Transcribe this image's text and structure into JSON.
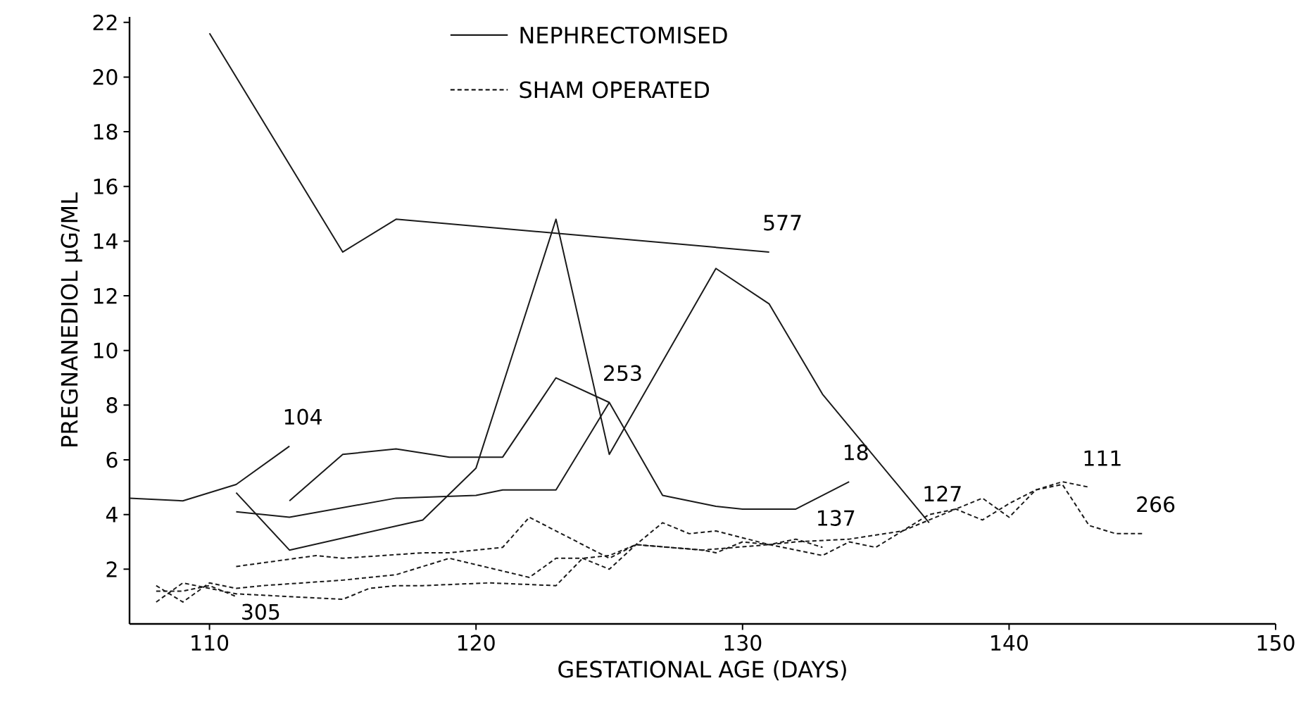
{
  "chart_data": {
    "type": "line",
    "xlabel": "GESTATIONAL AGE (DAYS)",
    "ylabel": "PREGNANEDIOL µG/ML",
    "annotations": [
      "NEPHRECTOMISED",
      "SHAM OPERATED"
    ],
    "xlim": [
      107,
      150
    ],
    "ylim": [
      0,
      22.2
    ],
    "xticks": [
      110,
      120,
      130,
      140,
      150
    ],
    "yticks": [
      2,
      4,
      6,
      8,
      10,
      12,
      14,
      16,
      18,
      20,
      22
    ],
    "grid": false,
    "marker": "none",
    "series": [
      {
        "name": "577",
        "color": "#1a1a1a",
        "line_style": "solid",
        "x": [
          110,
          115,
          117,
          131
        ],
        "values": [
          21.6,
          13.6,
          14.8,
          13.6
        ]
      },
      {
        "name": "104",
        "color": "#1a1a1a",
        "line_style": "solid",
        "x": [
          107,
          109,
          111,
          113
        ],
        "values": [
          4.6,
          4.5,
          5.1,
          6.5
        ]
      },
      {
        "name": "253",
        "color": "#1a1a1a",
        "line_style": "solid",
        "x": [
          113,
          115,
          117,
          119,
          121,
          123,
          125
        ],
        "values": [
          4.5,
          6.2,
          6.4,
          6.1,
          6.1,
          9.0,
          8.1
        ]
      },
      {
        "name": "18",
        "color": "#1a1a1a",
        "line_style": "solid",
        "x": [
          111,
          113,
          117,
          120,
          121,
          123,
          125,
          127,
          129,
          130,
          132,
          134
        ],
        "values": [
          4.1,
          3.9,
          4.6,
          4.7,
          4.9,
          4.9,
          8.1,
          4.7,
          4.3,
          4.2,
          4.2,
          5.2
        ]
      },
      {
        "name": "127",
        "color": "#1a1a1a",
        "line_style": "solid",
        "x": [
          111,
          113,
          118,
          120,
          123,
          125,
          129,
          131,
          133,
          137
        ],
        "values": [
          4.8,
          2.7,
          3.8,
          5.7,
          14.8,
          6.2,
          13.0,
          11.7,
          8.4,
          3.7
        ]
      },
      {
        "name": "137",
        "color": "#1a1a1a",
        "line_style": "dashed",
        "x": [
          111,
          114,
          115,
          118,
          119,
          121,
          122,
          125,
          126,
          128.5,
          129,
          130,
          131,
          132,
          133
        ],
        "values": [
          2.1,
          2.5,
          2.4,
          2.6,
          2.6,
          2.8,
          3.9,
          2.4,
          2.9,
          2.7,
          2.6,
          3.0,
          2.9,
          3.1,
          2.8
        ]
      },
      {
        "name": "111",
        "color": "#1a1a1a",
        "line_style": "dashed",
        "x": [
          108,
          109,
          110,
          111,
          112,
          115,
          117,
          119,
          122,
          123,
          124,
          125,
          126,
          127,
          128,
          129,
          131,
          133,
          134,
          135,
          137,
          138,
          139,
          140,
          141,
          142,
          143
        ],
        "values": [
          1.4,
          0.8,
          1.5,
          1.3,
          1.4,
          1.6,
          1.8,
          2.4,
          1.7,
          2.4,
          2.4,
          2.0,
          2.9,
          3.7,
          3.3,
          3.4,
          2.9,
          2.5,
          3.0,
          2.8,
          4.0,
          4.2,
          4.6,
          3.9,
          4.9,
          5.2,
          5.0
        ]
      },
      {
        "name": "266",
        "color": "#1a1a1a",
        "line_style": "dashed",
        "x": [
          108,
          109,
          110,
          111,
          115,
          116,
          117,
          118,
          120.5,
          123,
          124,
          125,
          126,
          128.5,
          131,
          132,
          134,
          136,
          137,
          138,
          139,
          140,
          141,
          142,
          143,
          144,
          145
        ],
        "values": [
          0.8,
          1.5,
          1.3,
          1.1,
          0.9,
          1.3,
          1.4,
          1.4,
          1.5,
          1.4,
          2.4,
          2.5,
          2.9,
          2.7,
          2.9,
          3.0,
          3.1,
          3.4,
          3.8,
          4.2,
          3.8,
          4.4,
          4.9,
          5.1,
          3.6,
          3.3,
          3.3
        ]
      },
      {
        "name": "305",
        "color": "#1a1a1a",
        "line_style": "dashed",
        "x": [
          108,
          109,
          110,
          111
        ],
        "values": [
          1.2,
          1.2,
          1.4,
          1.0
        ]
      }
    ]
  }
}
